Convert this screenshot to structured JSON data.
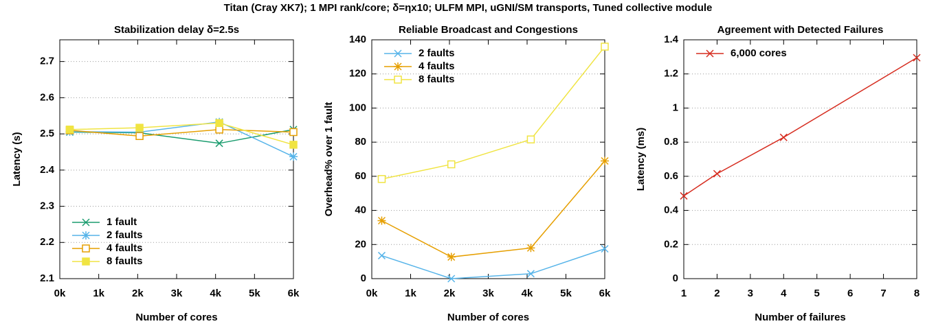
{
  "title": "Titan (Cray XK7); 1 MPI rank/core; δ=ηx10; ULFM MPI, uGNI/SM transports, Tuned collective module",
  "chart_data": [
    {
      "type": "line",
      "title": "Stabilization delay δ=2.5s",
      "xlabel": "Number of cores",
      "ylabel": "Latency (s)",
      "x": [
        256,
        2048,
        4096,
        6000
      ],
      "xlim": [
        0,
        6000
      ],
      "xticks": [
        {
          "value": 0,
          "label": "0k"
        },
        {
          "value": 1000,
          "label": "1k"
        },
        {
          "value": 2000,
          "label": "2k"
        },
        {
          "value": 3000,
          "label": "3k"
        },
        {
          "value": 4000,
          "label": "4k"
        },
        {
          "value": 5000,
          "label": "5k"
        },
        {
          "value": 6000,
          "label": "6k"
        }
      ],
      "ylim": [
        2.1,
        2.76
      ],
      "yticks": [
        2.1,
        2.2,
        2.3,
        2.4,
        2.5,
        2.6,
        2.7
      ],
      "grid": true,
      "legend": "lower left",
      "series": [
        {
          "name": "1 fault",
          "color": "#1a9c6e",
          "marker": "x",
          "values": [
            2.505,
            2.503,
            2.474,
            2.512
          ]
        },
        {
          "name": "2 faults",
          "color": "#56b4e9",
          "marker": "star",
          "values": [
            2.506,
            2.505,
            2.533,
            2.437
          ]
        },
        {
          "name": "4 faults",
          "color": "#e69f00",
          "marker": "square-open",
          "values": [
            2.51,
            2.494,
            2.512,
            2.505
          ]
        },
        {
          "name": "8 faults",
          "color": "#f0e442",
          "marker": "square",
          "values": [
            2.512,
            2.517,
            2.53,
            2.47
          ]
        }
      ]
    },
    {
      "type": "line",
      "title": "Reliable Broadcast and Congestions",
      "xlabel": "Number of cores",
      "ylabel": "Overhead% over 1 fault",
      "x": [
        256,
        2048,
        4096,
        6000
      ],
      "xlim": [
        0,
        6000
      ],
      "xticks": [
        {
          "value": 0,
          "label": "0k"
        },
        {
          "value": 1000,
          "label": "1k"
        },
        {
          "value": 2000,
          "label": "2k"
        },
        {
          "value": 3000,
          "label": "3k"
        },
        {
          "value": 4000,
          "label": "4k"
        },
        {
          "value": 5000,
          "label": "5k"
        },
        {
          "value": 6000,
          "label": "6k"
        }
      ],
      "ylim": [
        0,
        140
      ],
      "yticks": [
        0,
        20,
        40,
        60,
        80,
        100,
        120,
        140
      ],
      "grid": true,
      "legend": "upper left",
      "series": [
        {
          "name": "2 faults",
          "color": "#56b4e9",
          "marker": "x",
          "values": [
            13.5,
            0,
            2.9,
            17.5
          ]
        },
        {
          "name": "4 faults",
          "color": "#e69f00",
          "marker": "star",
          "values": [
            34,
            12.7,
            18,
            69
          ]
        },
        {
          "name": "8 faults",
          "color": "#f0e442",
          "marker": "square-open",
          "values": [
            58.4,
            67,
            81.6,
            136
          ]
        }
      ]
    },
    {
      "type": "line",
      "title": "Agreement with Detected Failures",
      "xlabel": "Number of failures",
      "ylabel": "Latency (ms)",
      "x": [
        1,
        2,
        4,
        8
      ],
      "xlim": [
        1,
        8
      ],
      "xticks": [
        1,
        2,
        3,
        4,
        5,
        6,
        7,
        8
      ],
      "ylim": [
        0,
        1.4
      ],
      "yticks": [
        0,
        0.2,
        0.4,
        0.6,
        0.8,
        1,
        1.2,
        1.4
      ],
      "grid": true,
      "legend": "upper left",
      "series": [
        {
          "name": "6,000 cores",
          "color": "#d62c1f",
          "marker": "x",
          "values": [
            0.485,
            0.615,
            0.828,
            1.295
          ]
        }
      ]
    }
  ]
}
